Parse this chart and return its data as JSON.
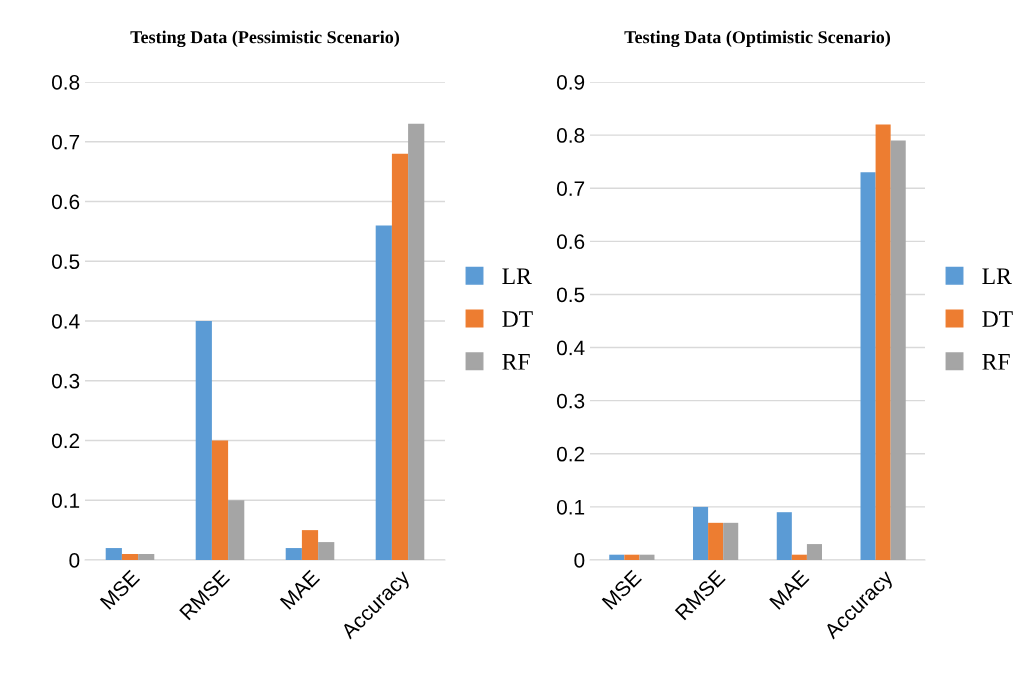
{
  "chart_data": [
    {
      "type": "bar",
      "title": "Testing Data (Pessimistic Scenario)",
      "categories": [
        "MSE",
        "RMSE",
        "MAE",
        "Accuracy"
      ],
      "series": [
        {
          "name": "LR",
          "color": "#5b9bd5",
          "values": [
            0.02,
            0.4,
            0.02,
            0.56
          ]
        },
        {
          "name": "DT",
          "color": "#ed7d31",
          "values": [
            0.01,
            0.2,
            0.05,
            0.68
          ]
        },
        {
          "name": "RF",
          "color": "#a5a5a5",
          "values": [
            0.01,
            0.1,
            0.03,
            0.73
          ]
        }
      ],
      "ylim": [
        0,
        0.8
      ],
      "yticks": [
        {
          "value": 0,
          "label": "0"
        },
        0.1,
        0.2,
        0.3,
        0.4,
        0.5,
        0.6,
        0.7,
        0.8
      ],
      "grid": "y",
      "legend": "right"
    },
    {
      "type": "bar",
      "title": "Testing Data (Optimistic Scenario)",
      "categories": [
        "MSE",
        "RMSE",
        "MAE",
        "Accuracy"
      ],
      "series": [
        {
          "name": "LR",
          "color": "#5b9bd5",
          "values": [
            0.01,
            0.1,
            0.09,
            0.73
          ]
        },
        {
          "name": "DT",
          "color": "#ed7d31",
          "values": [
            0.01,
            0.07,
            0.01,
            0.82
          ]
        },
        {
          "name": "RF",
          "color": "#a5a5a5",
          "values": [
            0.01,
            0.07,
            0.03,
            0.79
          ]
        }
      ],
      "ylim": [
        0,
        0.9
      ],
      "yticks": [
        {
          "value": 0,
          "label": "0"
        },
        0.1,
        0.2,
        0.3,
        0.4,
        0.5,
        0.6,
        0.7,
        0.8,
        0.9
      ],
      "grid": "y",
      "legend": "right"
    }
  ]
}
